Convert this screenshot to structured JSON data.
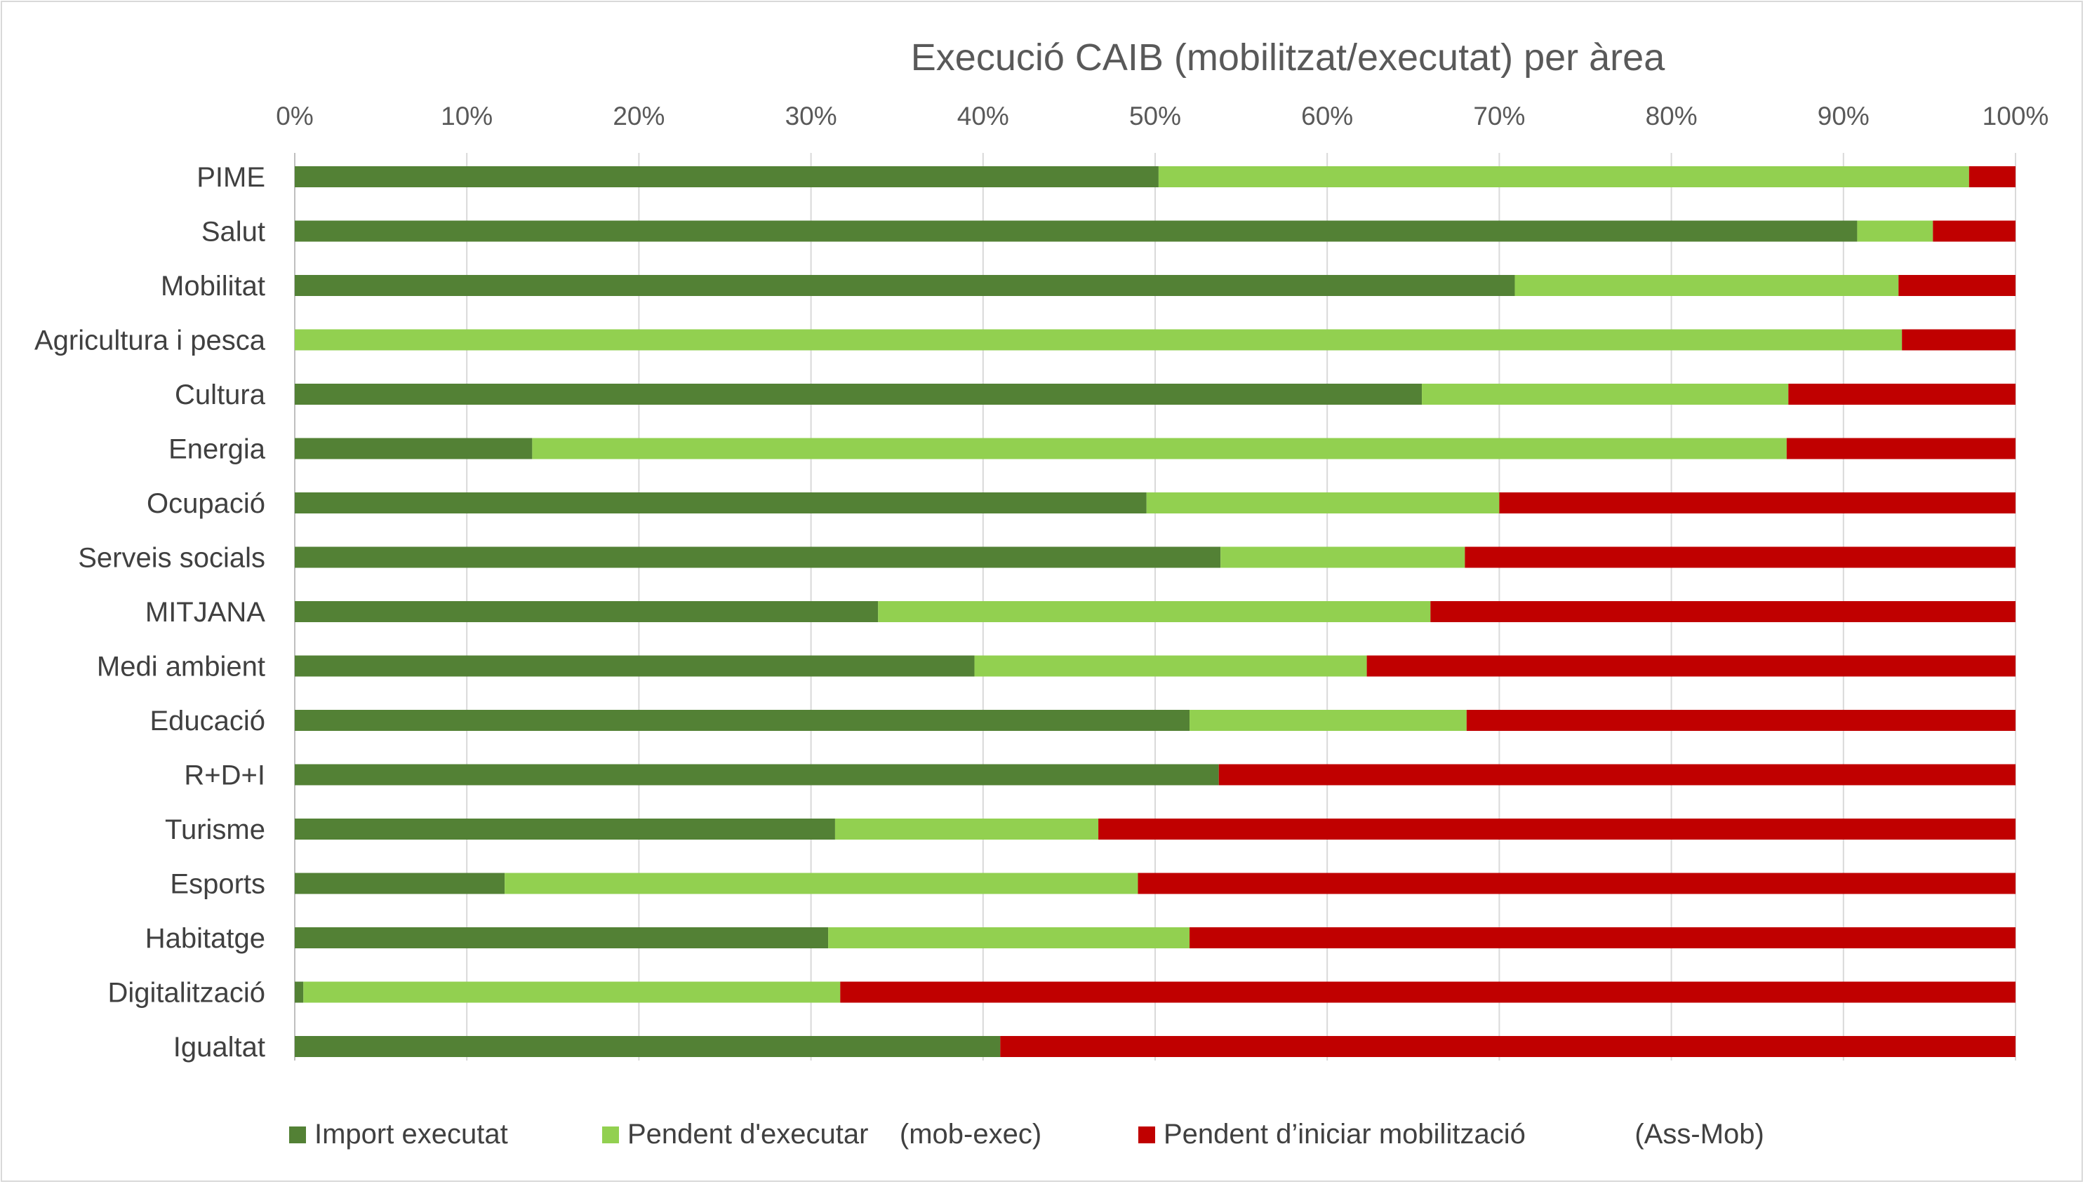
{
  "chart_data": {
    "type": "bar",
    "orientation": "horizontal",
    "stacked": "percent",
    "title": "Execució CAIB (mobilitzat/executat) per àrea",
    "x_axis_position": "top",
    "xlim": [
      0,
      100
    ],
    "x_ticks": [
      "0%",
      "10%",
      "20%",
      "30%",
      "40%",
      "50%",
      "60%",
      "70%",
      "80%",
      "90%",
      "100%"
    ],
    "grid": true,
    "legend_position": "bottom",
    "categories": [
      "PIME",
      "Salut",
      "Mobilitat",
      "Agricultura i pesca",
      "Cultura",
      "Energia",
      "Ocupació",
      "Serveis socials",
      "MITJANA",
      "Medi ambient",
      "Educació",
      "R+D+I",
      "Turisme",
      "Esports",
      "Habitatge",
      "Digitalització",
      "Igualtat"
    ],
    "series": [
      {
        "name": "Import executat",
        "color": "#538135",
        "values": [
          50.2,
          90.8,
          70.9,
          0,
          65.5,
          13.8,
          49.5,
          53.8,
          33.9,
          39.5,
          52.0,
          53.7,
          31.4,
          12.2,
          31.0,
          0.5,
          41.0
        ]
      },
      {
        "name": "Pendent d'executar    (mob-exec)",
        "color": "#92d050",
        "values": [
          47.1,
          4.4,
          22.3,
          93.4,
          21.3,
          72.9,
          20.5,
          14.2,
          32.1,
          22.8,
          16.1,
          0,
          15.3,
          36.8,
          21.0,
          31.2,
          0
        ]
      },
      {
        "name": "Pendent d’iniciar mobilització              (Ass-Mob)",
        "color": "#c00000",
        "values": [
          2.7,
          4.8,
          6.8,
          6.6,
          13.2,
          13.3,
          30.0,
          32.0,
          34.0,
          37.7,
          31.9,
          46.3,
          53.3,
          51.0,
          48.0,
          68.3,
          59.0
        ]
      }
    ]
  }
}
